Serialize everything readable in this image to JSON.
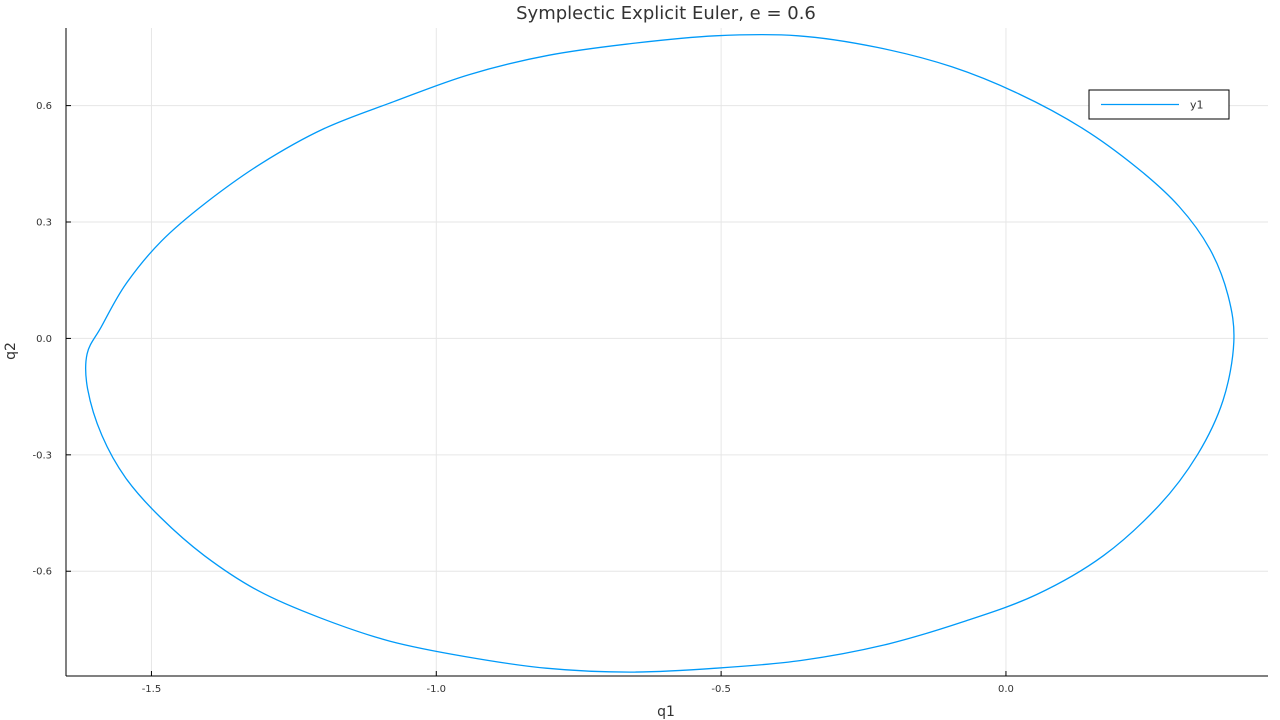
{
  "chart_data": {
    "type": "line",
    "title": "Symplectic Explicit Euler, e = 0.6",
    "xlabel": "q1",
    "ylabel": "q2",
    "xlim": [
      -1.65,
      0.46
    ],
    "ylim": [
      -0.87,
      0.8
    ],
    "xticks": [
      -1.5,
      -1.0,
      -0.5,
      0.0
    ],
    "xtick_labels": [
      "-1.5",
      "-1.0",
      "-0.5",
      "0.0"
    ],
    "yticks": [
      -0.6,
      -0.3,
      0.0,
      0.3,
      0.6
    ],
    "ytick_labels": [
      "-0.6",
      "-0.3",
      "0.0",
      "0.3",
      "0.6"
    ],
    "grid": true,
    "legend_position": "top-right",
    "series": [
      {
        "name": "y1",
        "color": "#009AF9",
        "x": [
          0.4,
          0.39,
          0.358,
          0.304,
          0.23,
          0.136,
          0.023,
          -0.095,
          -0.226,
          -0.365,
          -0.51,
          -0.657,
          -0.802,
          -0.942,
          -1.075,
          -1.198,
          -1.308,
          -1.404,
          -1.483,
          -1.545,
          -1.588,
          -1.613,
          -1.612,
          -1.587,
          -1.545,
          -1.485,
          -1.407,
          -1.313,
          -1.204,
          -1.082,
          -0.949,
          -0.807,
          -0.659,
          -0.509,
          -0.36,
          -0.214,
          -0.075,
          0.054,
          0.171,
          0.269,
          0.336,
          0.381,
          0.4
        ],
        "y": [
          -0.01,
          0.11,
          0.23,
          0.34,
          0.44,
          0.54,
          0.63,
          0.7,
          0.75,
          0.78,
          0.78,
          0.76,
          0.73,
          0.68,
          0.61,
          0.54,
          0.45,
          0.35,
          0.25,
          0.14,
          0.03,
          -0.04,
          -0.13,
          -0.25,
          -0.36,
          -0.46,
          -0.56,
          -0.65,
          -0.72,
          -0.78,
          -0.82,
          -0.85,
          -0.86,
          -0.85,
          -0.83,
          -0.79,
          -0.73,
          -0.66,
          -0.56,
          -0.43,
          -0.3,
          -0.16,
          -0.01
        ]
      }
    ]
  }
}
